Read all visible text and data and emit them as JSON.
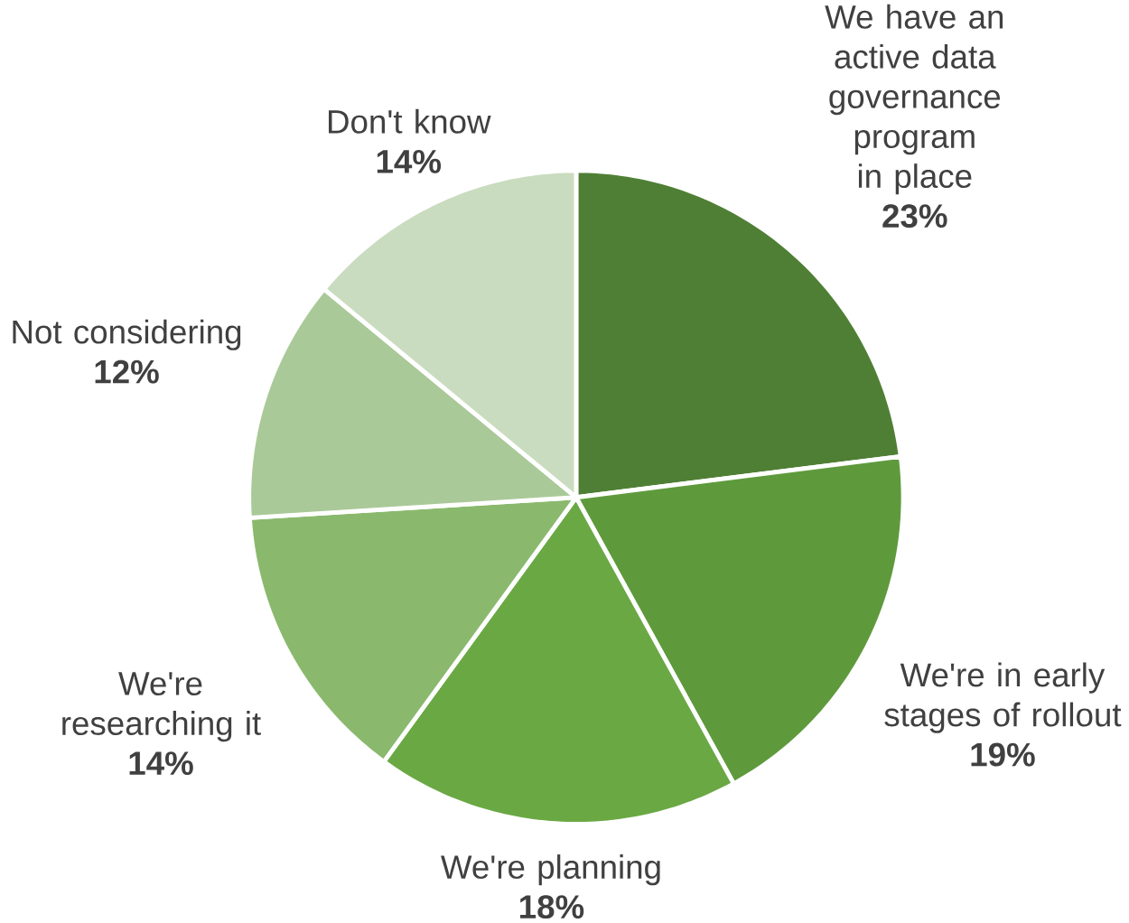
{
  "chart_data": {
    "type": "pie",
    "categories": [
      "We have an active data governance program in place",
      "We're in early stages of rollout",
      "We're planning",
      "We're researching it",
      "Not considering",
      "Don't know"
    ],
    "values": [
      23,
      19,
      18,
      14,
      12,
      14
    ],
    "value_labels": [
      "23%",
      "19%",
      "18%",
      "14%",
      "12%",
      "14%"
    ],
    "colors": [
      "#4f7f34",
      "#5e9a3c",
      "#6aa844",
      "#8ab96e",
      "#aac998",
      "#c9dcbf"
    ]
  }
}
